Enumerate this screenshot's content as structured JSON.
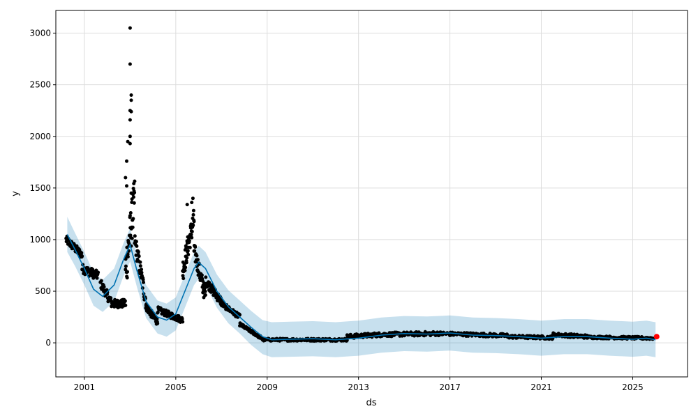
{
  "chart_data": {
    "type": "line",
    "title": "",
    "xlabel": "ds",
    "ylabel": "y",
    "x_ticks": [
      "2001",
      "2005",
      "2009",
      "2013",
      "2017",
      "2021",
      "2025"
    ],
    "x_tick_years": [
      2001,
      2005,
      2009,
      2013,
      2017,
      2021,
      2025
    ],
    "y_ticks": [
      0,
      500,
      1000,
      1500,
      2000,
      2500,
      3000
    ],
    "xlim": [
      1999.75,
      2027.4
    ],
    "ylim": [
      -330,
      3220
    ],
    "grid": true,
    "colors": {
      "forecast": "#0072b2",
      "interval": "#0072b2",
      "observed": "#000000",
      "highlight": "#ff0000",
      "grid": "#dddddd"
    },
    "forecast": {
      "x": [
        2000.25,
        2000.6,
        2001.0,
        2001.4,
        2001.8,
        2002.3,
        2002.7,
        2003.0,
        2003.3,
        2003.7,
        2004.2,
        2004.6,
        2005.0,
        2005.4,
        2005.8,
        2006.0,
        2006.3,
        2006.8,
        2007.3,
        2007.8,
        2008.3,
        2008.8,
        2009.2,
        2010.0,
        2011.0,
        2012.0,
        2013.0,
        2014.0,
        2015.0,
        2016.0,
        2017.0,
        2018.0,
        2019.0,
        2020.0,
        2021.0,
        2022.0,
        2023.0,
        2024.0,
        2025.0,
        2025.6,
        2026.0
      ],
      "yhat": [
        1050,
        900,
        720,
        520,
        450,
        560,
        800,
        950,
        700,
        400,
        250,
        220,
        280,
        500,
        720,
        780,
        720,
        500,
        350,
        250,
        150,
        60,
        30,
        35,
        40,
        30,
        45,
        75,
        90,
        85,
        95,
        75,
        70,
        60,
        45,
        60,
        60,
        45,
        35,
        45,
        30
      ],
      "lower": [
        880,
        740,
        560,
        360,
        300,
        400,
        640,
        790,
        540,
        240,
        90,
        60,
        120,
        340,
        560,
        620,
        560,
        340,
        190,
        90,
        -20,
        -110,
        -140,
        -135,
        -130,
        -140,
        -125,
        -95,
        -80,
        -85,
        -75,
        -95,
        -100,
        -110,
        -125,
        -110,
        -110,
        -125,
        -135,
        -125,
        -140
      ],
      "upper": [
        1220,
        1060,
        880,
        680,
        610,
        720,
        960,
        1110,
        860,
        560,
        410,
        380,
        440,
        660,
        880,
        940,
        880,
        660,
        510,
        410,
        310,
        220,
        200,
        205,
        210,
        200,
        215,
        245,
        260,
        255,
        265,
        245,
        240,
        230,
        215,
        230,
        230,
        215,
        205,
        215,
        200
      ]
    },
    "observed_segments": [
      {
        "x0": 2000.2,
        "x1": 2000.9,
        "y0": 1000,
        "y1": 850,
        "n": 55,
        "spread": 80
      },
      {
        "x0": 2000.9,
        "x1": 2001.6,
        "y0": 720,
        "y1": 650,
        "n": 45,
        "spread": 90
      },
      {
        "x0": 2001.7,
        "x1": 2002.2,
        "y0": 580,
        "y1": 380,
        "n": 35,
        "spread": 90
      },
      {
        "x0": 2002.2,
        "x1": 2002.8,
        "y0": 380,
        "y1": 380,
        "n": 50,
        "spread": 80
      },
      {
        "x0": 2002.8,
        "x1": 2003.2,
        "y0": 700,
        "y1": 1400,
        "n": 45,
        "spread": 420
      },
      {
        "x0": 2003.2,
        "x1": 2003.7,
        "y0": 1000,
        "y1": 400,
        "n": 40,
        "spread": 180
      },
      {
        "x0": 2003.7,
        "x1": 2004.2,
        "y0": 350,
        "y1": 200,
        "n": 45,
        "spread": 70
      },
      {
        "x0": 2004.2,
        "x1": 2005.3,
        "y0": 320,
        "y1": 220,
        "n": 70,
        "spread": 60
      },
      {
        "x0": 2005.3,
        "x1": 2005.8,
        "y0": 700,
        "y1": 1200,
        "n": 50,
        "spread": 220
      },
      {
        "x0": 2005.8,
        "x1": 2006.3,
        "y0": 900,
        "y1": 450,
        "n": 50,
        "spread": 160
      },
      {
        "x0": 2006.3,
        "x1": 2007.0,
        "y0": 600,
        "y1": 400,
        "n": 55,
        "spread": 90
      },
      {
        "x0": 2007.0,
        "x1": 2007.8,
        "y0": 380,
        "y1": 250,
        "n": 55,
        "spread": 50
      },
      {
        "x0": 2007.8,
        "x1": 2008.8,
        "y0": 180,
        "y1": 40,
        "n": 60,
        "spread": 30
      },
      {
        "x0": 2008.8,
        "x1": 2012.5,
        "y0": 30,
        "y1": 30,
        "n": 150,
        "spread": 25
      },
      {
        "x0": 2012.5,
        "x1": 2014.0,
        "y0": 60,
        "y1": 80,
        "n": 70,
        "spread": 40
      },
      {
        "x0": 2014.0,
        "x1": 2016.5,
        "y0": 80,
        "y1": 90,
        "n": 100,
        "spread": 40
      },
      {
        "x0": 2016.5,
        "x1": 2019.5,
        "y0": 90,
        "y1": 70,
        "n": 110,
        "spread": 35
      },
      {
        "x0": 2019.5,
        "x1": 2021.5,
        "y0": 60,
        "y1": 50,
        "n": 80,
        "spread": 30
      },
      {
        "x0": 2021.5,
        "x1": 2023.0,
        "y0": 80,
        "y1": 60,
        "n": 60,
        "spread": 35
      },
      {
        "x0": 2023.0,
        "x1": 2025.9,
        "y0": 55,
        "y1": 45,
        "n": 110,
        "spread": 25
      }
    ],
    "outlier_points": [
      {
        "x": 2003.0,
        "y": 3050
      },
      {
        "x": 2003.0,
        "y": 2700
      },
      {
        "x": 2003.05,
        "y": 2400
      },
      {
        "x": 2003.05,
        "y": 2350
      },
      {
        "x": 2003.0,
        "y": 2250
      },
      {
        "x": 2003.05,
        "y": 2240
      },
      {
        "x": 2003.0,
        "y": 2160
      },
      {
        "x": 2003.0,
        "y": 2000
      },
      {
        "x": 2003.0,
        "y": 1930
      },
      {
        "x": 2002.9,
        "y": 1950
      },
      {
        "x": 2002.85,
        "y": 1760
      },
      {
        "x": 2002.8,
        "y": 1600
      },
      {
        "x": 2002.85,
        "y": 1520
      },
      {
        "x": 2003.05,
        "y": 1450
      },
      {
        "x": 2005.75,
        "y": 1400
      },
      {
        "x": 2005.7,
        "y": 1360
      },
      {
        "x": 2005.5,
        "y": 1340
      }
    ],
    "highlight_point": {
      "x": 2026.05,
      "y": 60
    }
  }
}
